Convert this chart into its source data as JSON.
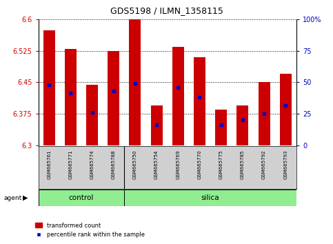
{
  "title": "GDS5198 / ILMN_1358115",
  "samples": [
    "GSM665761",
    "GSM665771",
    "GSM665774",
    "GSM665788",
    "GSM665750",
    "GSM665754",
    "GSM665769",
    "GSM665770",
    "GSM665775",
    "GSM665785",
    "GSM665792",
    "GSM665793"
  ],
  "bar_tops": [
    6.575,
    6.53,
    6.445,
    6.525,
    6.6,
    6.395,
    6.535,
    6.51,
    6.385,
    6.395,
    6.45,
    6.47
  ],
  "bar_base": 6.3,
  "blue_dots": [
    6.445,
    6.425,
    6.378,
    6.43,
    6.448,
    6.348,
    6.438,
    6.415,
    6.348,
    6.36,
    6.375,
    6.395
  ],
  "ylim_left": [
    6.3,
    6.6
  ],
  "ylim_right": [
    0,
    100
  ],
  "yticks_left": [
    6.3,
    6.375,
    6.45,
    6.525,
    6.6
  ],
  "ytick_labels_left": [
    "6.3",
    "6.375",
    "6.45",
    "6.525",
    "6.6"
  ],
  "yticks_right": [
    0,
    25,
    50,
    75,
    100
  ],
  "ytick_labels_right": [
    "0",
    "25",
    "50",
    "75",
    "100%"
  ],
  "bar_color": "#CC0000",
  "dot_color": "#0000CC",
  "left_tick_color": "#CC0000",
  "right_tick_color": "#0000BB",
  "control_indices": [
    0,
    1,
    2,
    3
  ],
  "silica_indices": [
    4,
    5,
    6,
    7,
    8,
    9,
    10,
    11
  ],
  "green_color": "#90EE90",
  "grey_color": "#D0D0D0",
  "agent_label": "agent",
  "legend_items": [
    "transformed count",
    "percentile rank within the sample"
  ],
  "bar_width": 0.55
}
